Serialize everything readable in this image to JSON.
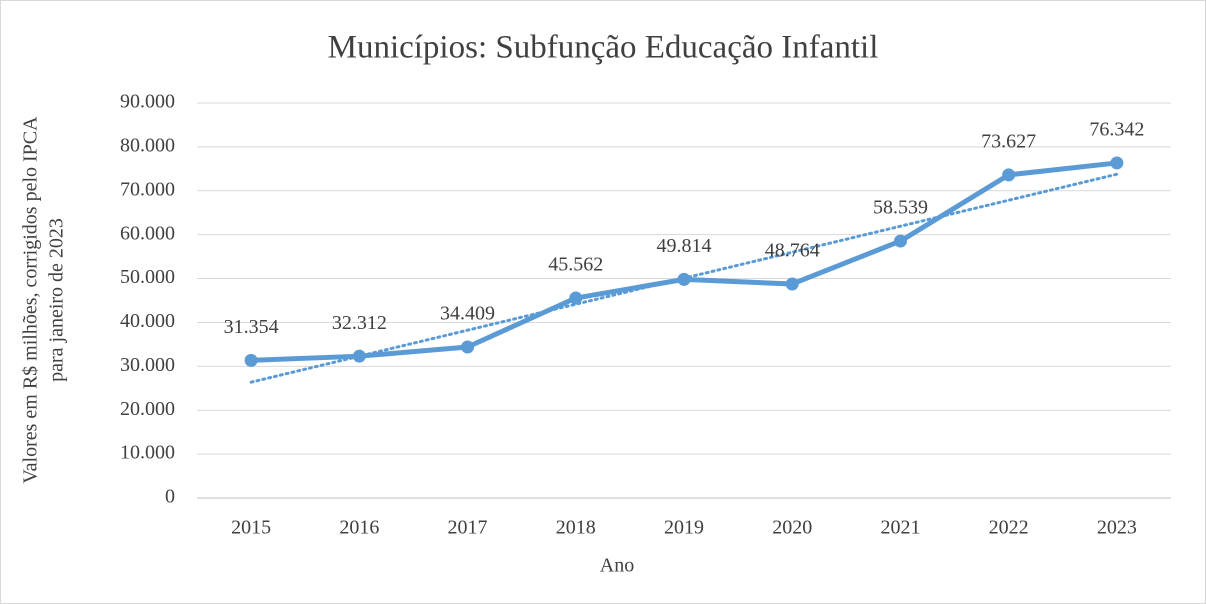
{
  "chart_data": {
    "type": "line",
    "title": "Municípios: Subfunção Educação Infantil",
    "x_label": "Ano",
    "y_label": [
      "Valores em R$ milhões, corrigidos pelo IPCA",
      "para janeiro de 2023"
    ],
    "categories": [
      "2015",
      "2016",
      "2017",
      "2018",
      "2019",
      "2020",
      "2021",
      "2022",
      "2023"
    ],
    "series": [
      {
        "name": "Subfunção Educação Infantil",
        "color": "#5b9bd5",
        "values": [
          31354,
          32312,
          34409,
          45562,
          49814,
          48764,
          58539,
          73627,
          76342
        ],
        "value_labels": [
          "31.354",
          "32.312",
          "34.409",
          "45.562",
          "49.814",
          "48.764",
          "58.539",
          "73.627",
          "76.342"
        ]
      }
    ],
    "trendline": "linear",
    "ylim": [
      0,
      90000
    ],
    "yticks": [
      0,
      {
        "value": 10000,
        "label": "10.000"
      },
      {
        "value": 20000,
        "label": "20.000"
      },
      {
        "value": 30000,
        "label": "30.000"
      },
      {
        "value": 40000,
        "label": "40.000"
      },
      {
        "value": 50000,
        "label": "50.000"
      },
      {
        "value": 60000,
        "label": "60.000"
      },
      {
        "value": 70000,
        "label": "70.000"
      },
      {
        "value": 80000,
        "label": "80.000"
      },
      {
        "value": 90000,
        "label": "90.000"
      }
    ],
    "grid": true
  }
}
